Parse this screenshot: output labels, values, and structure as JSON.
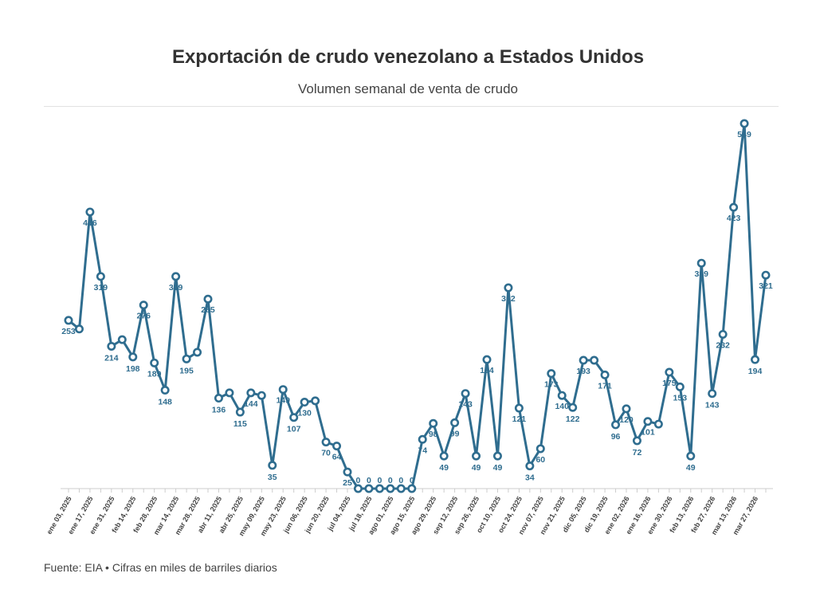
{
  "header": {
    "title": "Exportación de crudo venezolano a Estados Unidos",
    "subtitle": "Volumen semanal de venta de crudo"
  },
  "footer": {
    "source": "Fuente: EIA • Cifras en miles de barriles diarios"
  },
  "colors": {
    "line": "#2f6d8f",
    "label": "#2f6d8f",
    "axis": "#cccccc"
  },
  "chart_data": {
    "type": "line",
    "title": "Exportación de crudo venezolano a Estados Unidos",
    "subtitle": "Volumen semanal de venta de crudo",
    "xlabel": "",
    "ylabel": "",
    "ylim": [
      0,
      560
    ],
    "grid": false,
    "legend": "none",
    "tick_labels": [
      "ene 03, 2025",
      "ene 17, 2025",
      "ene 31, 2025",
      "feb 14, 2025",
      "feb 28, 2025",
      "mar 14, 2025",
      "mar 28, 2025",
      "abr 11, 2025",
      "abr 25, 2025",
      "may 09, 2025",
      "may 23, 2025",
      "jun 06, 2025",
      "jun 20, 2025",
      "jul 04, 2025",
      "jul 18, 2025",
      "ago 01, 2025",
      "ago 15, 2025",
      "ago 29, 2025",
      "sep 12, 2025",
      "sep 26, 2025",
      "oct 10, 2025",
      "oct 24, 2025",
      "nov 07, 2025",
      "nov 21, 2025",
      "dic 05, 2025",
      "dic 19, 2025",
      "ene 02, 2026",
      "ene 16, 2026",
      "ene 30, 2026",
      "feb 13, 2026",
      "feb 27, 2026",
      "mar 13, 2026",
      "mar 27, 2026"
    ],
    "tick_every": 2,
    "series": [
      {
        "values": [
          253,
          null,
          416,
          319,
          214,
          224,
          198,
          276,
          189,
          148,
          319,
          195,
          205,
          285,
          136,
          144,
          115,
          144,
          140,
          35,
          149,
          107,
          130,
          132,
          70,
          64,
          25,
          0,
          0,
          0,
          0,
          0,
          0,
          74,
          98,
          49,
          99,
          143,
          49,
          194,
          49,
          302,
          121,
          34,
          60,
          173,
          140,
          122,
          193,
          193,
          171,
          96,
          120,
          72,
          101,
          97,
          175,
          153,
          49,
          339,
          143,
          232,
          423,
          549,
          194,
          321
        ],
        "labels": [
          "253",
          "",
          "416",
          "319",
          "214",
          "",
          "198",
          "276",
          "189",
          "148",
          "319",
          "195",
          "",
          "285",
          "136",
          "",
          "115",
          "144",
          "",
          "35",
          "149",
          "107",
          "130",
          "",
          "70",
          "64",
          "25",
          "0",
          "0",
          "0",
          "0",
          "0",
          "0",
          "74",
          "98",
          "49",
          "99",
          "143",
          "49",
          "194",
          "49",
          "302",
          "121",
          "34",
          "60",
          "173",
          "140",
          "122",
          "193",
          "",
          "171",
          "96",
          "120",
          "72",
          "101",
          "",
          "175",
          "153",
          "49",
          "339",
          "143",
          "232",
          "423",
          "549",
          "194",
          "321"
        ]
      }
    ]
  }
}
